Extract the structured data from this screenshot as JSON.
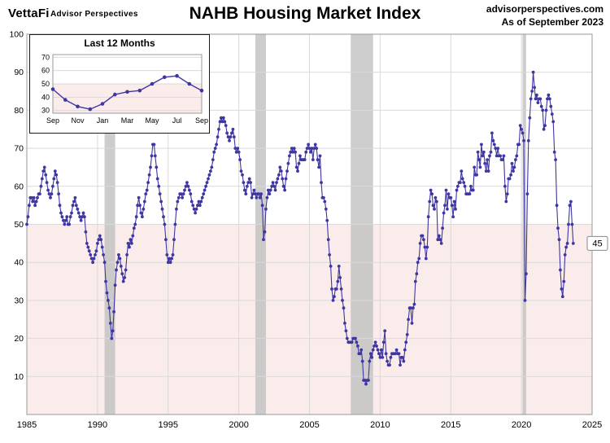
{
  "header": {
    "logo": "VettaFi",
    "logo_sub": "Advisor Perspectives",
    "title": "NAHB Housing Market Index",
    "site": "advisorperspectives.com",
    "as_of": "As of September 2023"
  },
  "chart_data": {
    "type": "line",
    "title": "NAHB Housing Market Index",
    "frequency": "monthly",
    "x_start_year": 1985,
    "x_end_year": 2025,
    "ylim": [
      0,
      100
    ],
    "yticks": [
      10,
      20,
      30,
      40,
      50,
      60,
      70,
      80,
      90,
      100
    ],
    "xticks": [
      1985,
      1990,
      1995,
      2000,
      2005,
      2010,
      2015,
      2020,
      2025
    ],
    "benchmark_level": 50,
    "end_label": "45",
    "recessions": [
      [
        1990.5,
        1991.25
      ],
      [
        2001.17,
        2001.92
      ],
      [
        2007.92,
        2009.5
      ],
      [
        2020.08,
        2020.33
      ]
    ],
    "colors": {
      "line": "#3e36a3",
      "below50_fill": "#fbecec",
      "recession_fill": "#c0c0c0",
      "grid": "#d9d9d9",
      "border": "#999999"
    },
    "series": [
      {
        "name": "NAHB Housing Market Index",
        "start": "1985-01",
        "values": [
          50,
          52,
          55,
          57,
          57,
          56,
          57,
          55,
          56,
          57,
          58,
          58,
          60,
          62,
          64,
          65,
          63,
          61,
          59,
          58,
          57,
          58,
          60,
          62,
          64,
          63,
          61,
          58,
          55,
          53,
          52,
          51,
          50,
          51,
          52,
          50,
          50,
          52,
          53,
          55,
          56,
          57,
          55,
          54,
          53,
          52,
          51,
          52,
          53,
          52,
          48,
          45,
          44,
          43,
          42,
          41,
          40,
          41,
          42,
          43,
          45,
          46,
          47,
          46,
          44,
          42,
          40,
          35,
          32,
          30,
          28,
          24,
          20,
          22,
          27,
          34,
          38,
          40,
          42,
          41,
          39,
          37,
          35,
          36,
          38,
          42,
          45,
          44,
          46,
          45,
          47,
          49,
          50,
          52,
          55,
          57,
          55,
          53,
          52,
          54,
          56,
          58,
          59,
          61,
          63,
          65,
          68,
          71,
          71,
          68,
          65,
          62,
          60,
          58,
          56,
          54,
          52,
          50,
          46,
          42,
          40,
          41,
          40,
          41,
          42,
          46,
          50,
          54,
          56,
          57,
          58,
          58,
          57,
          58,
          59,
          60,
          61,
          60,
          59,
          58,
          56,
          55,
          54,
          53,
          54,
          55,
          56,
          55,
          56,
          57,
          58,
          59,
          60,
          61,
          62,
          63,
          64,
          65,
          67,
          69,
          70,
          71,
          73,
          75,
          77,
          78,
          77,
          78,
          77,
          76,
          74,
          73,
          72,
          73,
          74,
          75,
          73,
          70,
          69,
          70,
          69,
          67,
          64,
          63,
          61,
          59,
          58,
          60,
          61,
          62,
          61,
          57,
          58,
          59,
          58,
          57,
          58,
          58,
          57,
          58,
          55,
          46,
          48,
          54,
          57,
          59,
          58,
          59,
          60,
          61,
          60,
          59,
          61,
          62,
          63,
          65,
          64,
          62,
          60,
          59,
          62,
          64,
          66,
          68,
          69,
          70,
          69,
          70,
          69,
          65,
          64,
          66,
          68,
          67,
          67,
          67,
          67,
          69,
          70,
          71,
          70,
          69,
          70,
          67,
          70,
          71,
          70,
          67,
          65,
          68,
          61,
          57,
          57,
          56,
          54,
          51,
          46,
          42,
          39,
          33,
          30,
          31,
          33,
          33,
          35,
          39,
          36,
          33,
          30,
          28,
          24,
          22,
          20,
          19,
          19,
          19,
          19,
          20,
          20,
          20,
          19,
          18,
          16,
          16,
          17,
          14,
          9,
          9,
          8,
          9,
          9,
          14,
          16,
          15,
          17,
          18,
          19,
          18,
          17,
          16,
          15,
          17,
          15,
          19,
          22,
          16,
          14,
          13,
          13,
          15,
          16,
          16,
          16,
          16,
          17,
          16,
          16,
          13,
          15,
          15,
          14,
          17,
          19,
          21,
          25,
          28,
          28,
          24,
          28,
          29,
          35,
          37,
          40,
          41,
          45,
          47,
          47,
          46,
          44,
          41,
          44,
          52,
          56,
          59,
          58,
          55,
          54,
          57,
          56,
          46,
          47,
          46,
          45,
          49,
          53,
          55,
          59,
          54,
          58,
          57,
          57,
          55,
          52,
          56,
          54,
          59,
          60,
          61,
          61,
          64,
          62,
          61,
          60,
          58,
          58,
          58,
          58,
          60,
          59,
          59,
          65,
          63,
          63,
          69,
          67,
          65,
          71,
          68,
          69,
          66,
          64,
          67,
          64,
          68,
          69,
          74,
          72,
          71,
          70,
          68,
          70,
          68,
          68,
          67,
          67,
          68,
          60,
          56,
          58,
          62,
          62,
          63,
          66,
          64,
          65,
          67,
          68,
          71,
          71,
          76,
          75,
          74,
          72,
          30,
          37,
          58,
          72,
          78,
          83,
          85,
          90,
          86,
          83,
          84,
          82,
          83,
          83,
          81,
          80,
          75,
          76,
          80,
          83,
          84,
          83,
          81,
          79,
          77,
          69,
          67,
          55,
          49,
          46,
          38,
          33,
          31,
          35,
          42,
          44,
          45,
          50,
          55,
          56,
          50,
          45
        ]
      }
    ],
    "inset": {
      "title": "Last 12 Months",
      "ylim": [
        28,
        72
      ],
      "yticks": [
        30,
        40,
        50,
        60,
        70
      ],
      "x_labels": [
        "Sep",
        "Nov",
        "Jan",
        "Mar",
        "May",
        "Jul",
        "Sep"
      ],
      "values": [
        46,
        38,
        33,
        31,
        35,
        42,
        44,
        45,
        50,
        55,
        56,
        50,
        45
      ]
    }
  }
}
